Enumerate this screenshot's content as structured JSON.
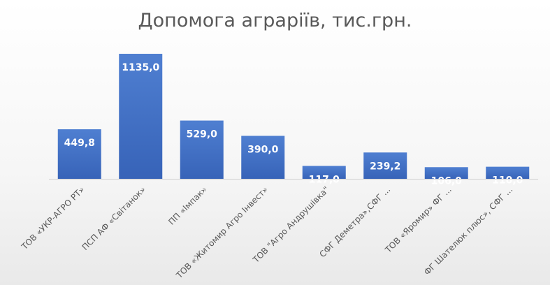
{
  "chart_data": {
    "type": "bar",
    "title": "Допомога аграріїв, тис.грн.",
    "xlabel": "",
    "ylabel": "",
    "categories": [
      "ТОВ «УКР-АГРО РТ»",
      "ПСП АФ «Світанок»",
      "ПП «Імпак»",
      "ТОВ «Житомир Агро Інвест»",
      "ТОВ \"Агро Андрушівка\"",
      "СФГ Деметра»,СФГ ...",
      "ТОВ «Яромир» ФГ ...",
      "ФГ Шателюк плюс», СФГ ..."
    ],
    "values": [
      449.8,
      1135.0,
      529.0,
      390.0,
      117.0,
      239.2,
      106.0,
      110.0
    ],
    "value_labels": [
      "449,8",
      "1135,0",
      "529,0",
      "390,0",
      "117,0",
      "239,2",
      "106,0",
      "110,0"
    ],
    "ylim": [
      0,
      1135.0
    ],
    "grid": false,
    "legend": "none",
    "bar_color": "#4472C4"
  }
}
